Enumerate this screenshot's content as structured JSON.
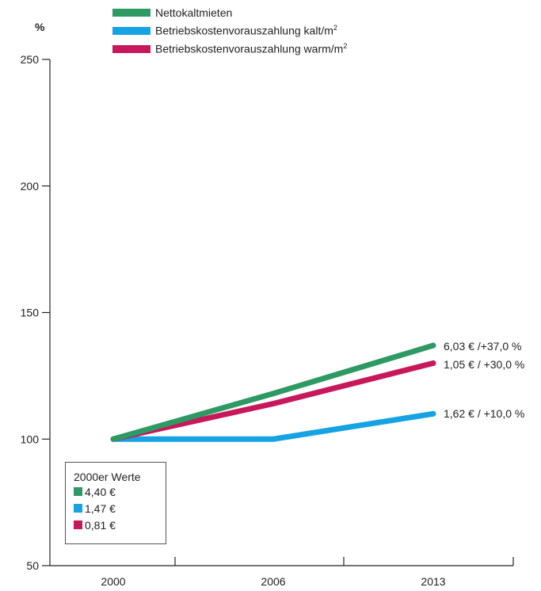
{
  "chart_data": {
    "type": "line",
    "ylabel": "%",
    "ylim": [
      50,
      250
    ],
    "yticks": [
      "50",
      "100",
      "150",
      "200",
      "250"
    ],
    "categories": [
      "2000",
      "2006",
      "2013"
    ],
    "series": [
      {
        "name": "Nettokaltmieten",
        "color": "#2e9a63",
        "values": [
          100,
          118,
          137
        ],
        "end_label": "6,03 € /+37,0 %"
      },
      {
        "name": "Betriebskostenvorauszahlung kalt/m",
        "name_sup": "2",
        "color": "#16a3e3",
        "values": [
          100,
          100,
          110
        ],
        "end_label": "1,62 € / +10,0 %"
      },
      {
        "name": "Betriebskostenvorauszahlung warm/m",
        "name_sup": "2",
        "color": "#c8185c",
        "values": [
          100,
          114,
          130
        ],
        "end_label": "1,05 € / +30,0 %"
      }
    ],
    "inset": {
      "title": "2000er Werte",
      "items": [
        {
          "label": "4,40 €",
          "color": "#2e9a63"
        },
        {
          "label": "1,47 €",
          "color": "#16a3e3"
        },
        {
          "label": "0,81 €",
          "color": "#c8185c"
        }
      ]
    }
  }
}
